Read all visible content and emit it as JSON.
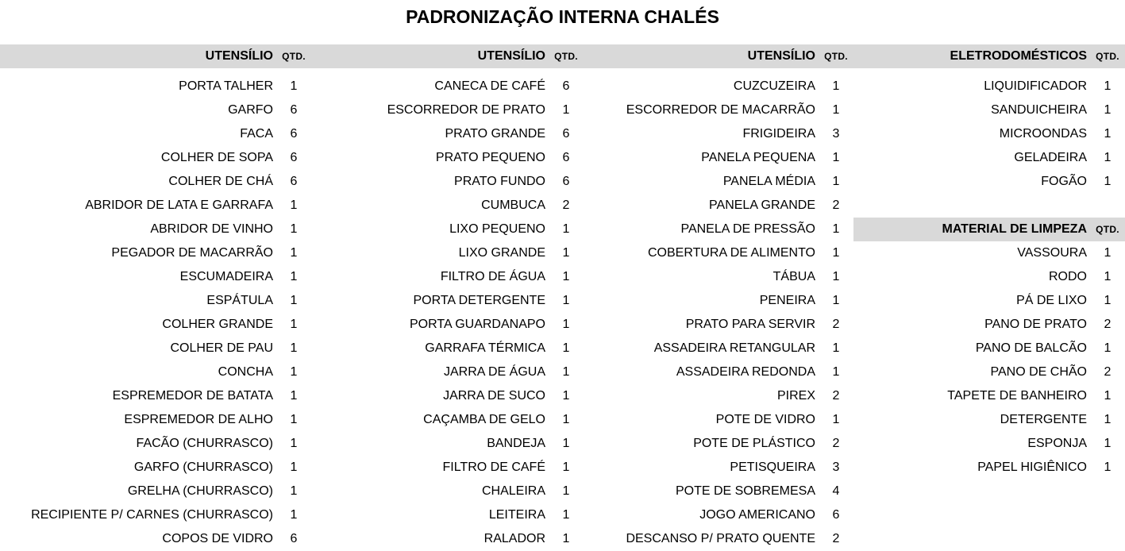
{
  "title": "PADRONIZAÇÃO INTERNA CHALÉS",
  "colors": {
    "header_band": "#d9d9d9",
    "text": "#000000",
    "background": "#ffffff"
  },
  "columns": [
    {
      "header": "UTENSÍLIO",
      "qty_header": "QTD.",
      "items": [
        {
          "name": "PORTA TALHER",
          "qty": "1"
        },
        {
          "name": "GARFO",
          "qty": "6"
        },
        {
          "name": "FACA",
          "qty": "6"
        },
        {
          "name": "COLHER DE SOPA",
          "qty": "6"
        },
        {
          "name": "COLHER DE CHÁ",
          "qty": "6"
        },
        {
          "name": "ABRIDOR DE LATA E GARRAFA",
          "qty": "1"
        },
        {
          "name": "ABRIDOR DE VINHO",
          "qty": "1"
        },
        {
          "name": "PEGADOR DE MACARRÃO",
          "qty": "1"
        },
        {
          "name": "ESCUMADEIRA",
          "qty": "1"
        },
        {
          "name": "ESPÁTULA",
          "qty": "1"
        },
        {
          "name": "COLHER GRANDE",
          "qty": "1"
        },
        {
          "name": "COLHER DE PAU",
          "qty": "1"
        },
        {
          "name": "CONCHA",
          "qty": "1"
        },
        {
          "name": "ESPREMEDOR DE BATATA",
          "qty": "1"
        },
        {
          "name": "ESPREMEDOR DE ALHO",
          "qty": "1"
        },
        {
          "name": "FACÃO (CHURRASCO)",
          "qty": "1"
        },
        {
          "name": "GARFO (CHURRASCO)",
          "qty": "1"
        },
        {
          "name": "GRELHA (CHURRASCO)",
          "qty": "1"
        },
        {
          "name": "RECIPIENTE P/ CARNES (CHURRASCO)",
          "qty": "1"
        },
        {
          "name": "COPOS DE VIDRO",
          "qty": "6"
        }
      ]
    },
    {
      "header": "UTENSÍLIO",
      "qty_header": "QTD.",
      "items": [
        {
          "name": "CANECA DE CAFÉ",
          "qty": "6"
        },
        {
          "name": "ESCORREDOR DE PRATO",
          "qty": "1"
        },
        {
          "name": "PRATO GRANDE",
          "qty": "6"
        },
        {
          "name": "PRATO PEQUENO",
          "qty": "6"
        },
        {
          "name": "PRATO FUNDO",
          "qty": "6"
        },
        {
          "name": "CUMBUCA",
          "qty": "2"
        },
        {
          "name": "LIXO PEQUENO",
          "qty": "1"
        },
        {
          "name": "LIXO GRANDE",
          "qty": "1"
        },
        {
          "name": "FILTRO DE ÁGUA",
          "qty": "1"
        },
        {
          "name": "PORTA DETERGENTE",
          "qty": "1"
        },
        {
          "name": "PORTA GUARDANAPO",
          "qty": "1"
        },
        {
          "name": "GARRAFA TÉRMICA",
          "qty": "1"
        },
        {
          "name": "JARRA DE ÁGUA",
          "qty": "1"
        },
        {
          "name": "JARRA DE SUCO",
          "qty": "1"
        },
        {
          "name": "CAÇAMBA DE GELO",
          "qty": "1"
        },
        {
          "name": "BANDEJA",
          "qty": "1"
        },
        {
          "name": "FILTRO DE CAFÉ",
          "qty": "1"
        },
        {
          "name": "CHALEIRA",
          "qty": "1"
        },
        {
          "name": "LEITEIRA",
          "qty": "1"
        },
        {
          "name": "RALADOR",
          "qty": "1"
        }
      ]
    },
    {
      "header": "UTENSÍLIO",
      "qty_header": "QTD.",
      "items": [
        {
          "name": "CUZCUZEIRA",
          "qty": "1"
        },
        {
          "name": "ESCORREDOR DE MACARRÃO",
          "qty": "1"
        },
        {
          "name": "FRIGIDEIRA",
          "qty": "3"
        },
        {
          "name": "PANELA PEQUENA",
          "qty": "1"
        },
        {
          "name": "PANELA MÉDIA",
          "qty": "1"
        },
        {
          "name": "PANELA GRANDE",
          "qty": "2"
        },
        {
          "name": "PANELA DE PRESSÃO",
          "qty": "1"
        },
        {
          "name": "COBERTURA DE ALIMENTO",
          "qty": "1"
        },
        {
          "name": "TÁBUA",
          "qty": "1"
        },
        {
          "name": "PENEIRA",
          "qty": "1"
        },
        {
          "name": "PRATO PARA SERVIR",
          "qty": "2"
        },
        {
          "name": "ASSADEIRA RETANGULAR",
          "qty": "1"
        },
        {
          "name": "ASSADEIRA REDONDA",
          "qty": "1"
        },
        {
          "name": "PIREX",
          "qty": "2"
        },
        {
          "name": "POTE DE VIDRO",
          "qty": "1"
        },
        {
          "name": "POTE DE PLÁSTICO",
          "qty": "2"
        },
        {
          "name": "PETISQUEIRA",
          "qty": "3"
        },
        {
          "name": "POTE DE SOBREMESA",
          "qty": "4"
        },
        {
          "name": "JOGO AMERICANO",
          "qty": "6"
        },
        {
          "name": "DESCANSO P/ PRATO QUENTE",
          "qty": "2"
        }
      ]
    },
    {
      "header": "ELETRODOMÉSTICOS",
      "qty_header": "QTD.",
      "items": [
        {
          "name": "LIQUIDIFICADOR",
          "qty": "1"
        },
        {
          "name": "SANDUICHEIRA",
          "qty": "1"
        },
        {
          "name": "MICROONDAS",
          "qty": "1"
        },
        {
          "name": "GELADEIRA",
          "qty": "1"
        },
        {
          "name": "FOGÃO",
          "qty": "1"
        }
      ],
      "subsection": {
        "header": "MATERIAL DE LIMPEZA",
        "qty_header": "QTD.",
        "items": [
          {
            "name": "VASSOURA",
            "qty": "1"
          },
          {
            "name": "RODO",
            "qty": "1"
          },
          {
            "name": "PÁ DE LIXO",
            "qty": "1"
          },
          {
            "name": "PANO DE PRATO",
            "qty": "2"
          },
          {
            "name": "PANO DE BALCÃO",
            "qty": "1"
          },
          {
            "name": "PANO DE CHÃO",
            "qty": "2"
          },
          {
            "name": "TAPETE DE BANHEIRO",
            "qty": "1"
          },
          {
            "name": "DETERGENTE",
            "qty": "1"
          },
          {
            "name": "ESPONJA",
            "qty": "1"
          },
          {
            "name": "PAPEL HIGIÊNICO",
            "qty": "1"
          }
        ]
      }
    }
  ]
}
